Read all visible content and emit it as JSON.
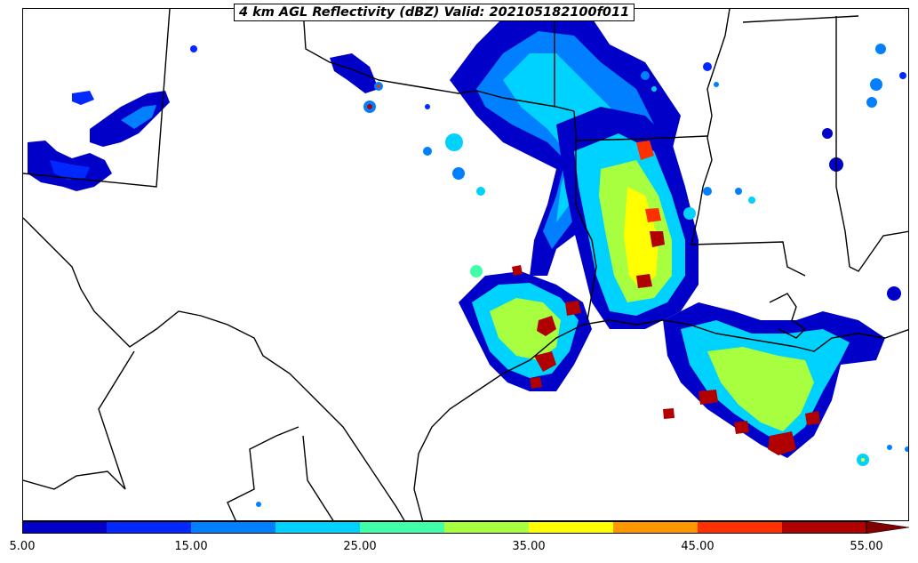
{
  "title": "4 km AGL Reflectivity (dBZ) Valid: 202105182100f011",
  "colorbar": {
    "ticks": [
      "5.00",
      "15.00",
      "25.00",
      "35.00",
      "45.00",
      "55.00"
    ],
    "bins": [
      {
        "range": "5-10",
        "color": "#0000c8"
      },
      {
        "range": "10-15",
        "color": "#0028ff"
      },
      {
        "range": "15-20",
        "color": "#0080ff"
      },
      {
        "range": "20-25",
        "color": "#00d2ff"
      },
      {
        "range": "25-30",
        "color": "#40ffa8"
      },
      {
        "range": "30-35",
        "color": "#a8ff40"
      },
      {
        "range": "35-40",
        "color": "#ffff00"
      },
      {
        "range": "40-45",
        "color": "#ff9800"
      },
      {
        "range": "45-50",
        "color": "#ff3000"
      },
      {
        "range": "50-55",
        "color": "#b00000"
      },
      {
        "range": ">55",
        "color": "#800000"
      }
    ],
    "extend": "max"
  },
  "map": {
    "region": "Texas / Louisiana / Gulf Coast",
    "field": "reflectivity",
    "boundaries": [
      "state-borders",
      "coastline",
      "international-border"
    ]
  }
}
